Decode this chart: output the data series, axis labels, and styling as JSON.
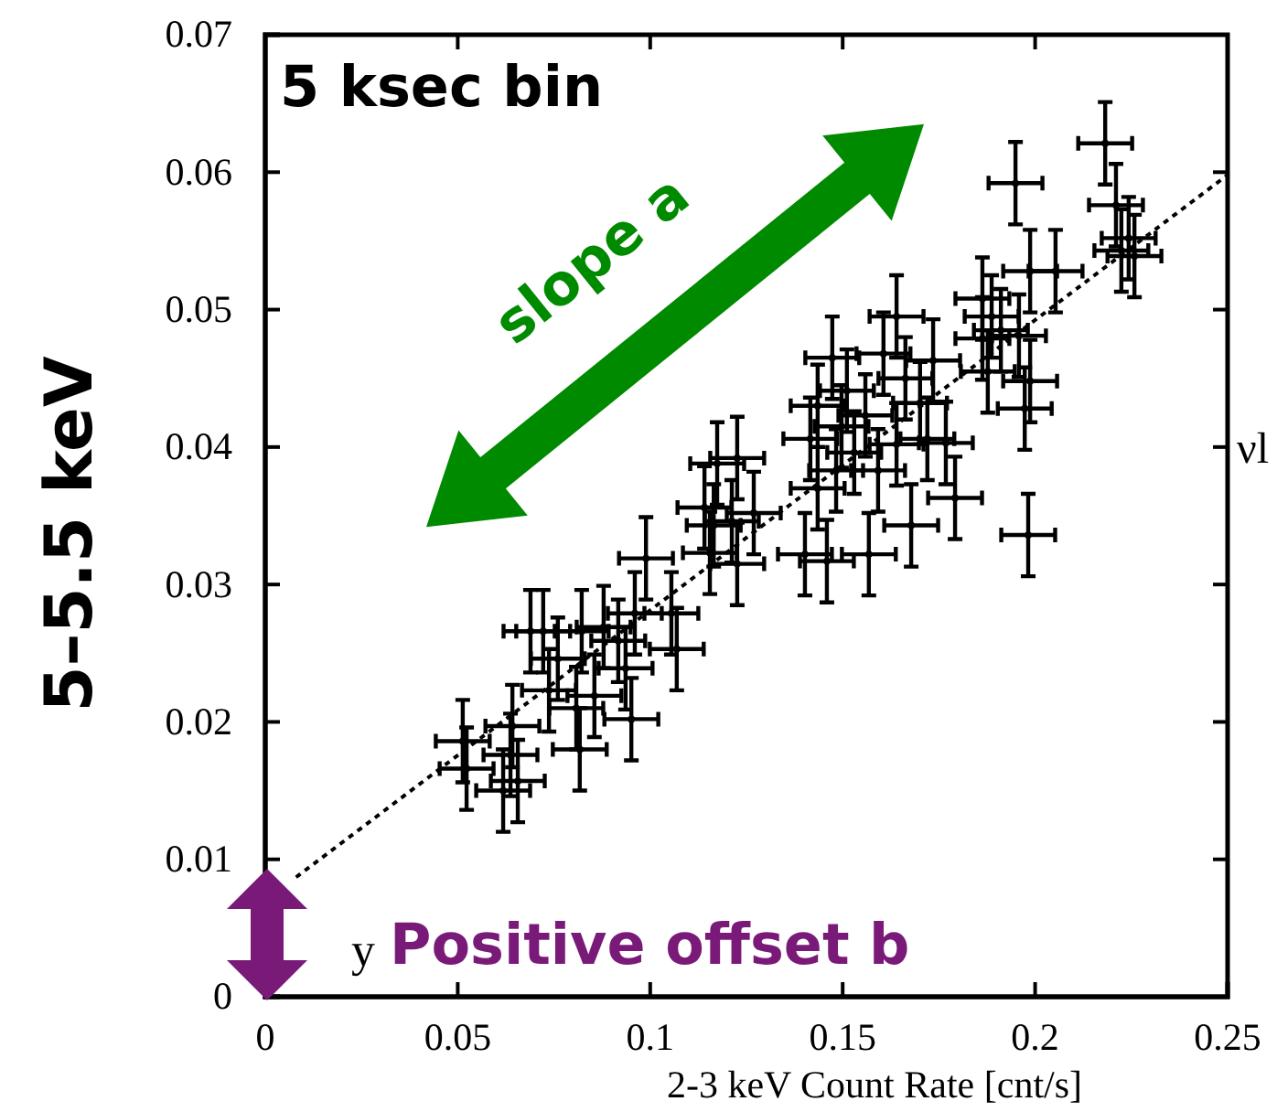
{
  "chart_data": {
    "type": "scatter",
    "xlabel": "2-3 keV Count Rate [cnt/s]",
    "ylabel": "5–5.5 keV",
    "annotations": [
      "5 ksec bin",
      "slope a",
      "Positive offset b",
      "y",
      "νl"
    ],
    "xlim": [
      0,
      0.25
    ],
    "xticks": [
      0,
      0.05,
      0.1,
      0.15,
      0.2,
      0.25
    ],
    "ylim": [
      0,
      0.07
    ],
    "yticks": [
      0,
      0.01,
      0.02,
      0.03,
      0.04,
      0.05,
      0.06,
      0.07
    ],
    "grid": false,
    "series": [
      {
        "marker": "circle",
        "color": "#000000",
        "x": [
          0.0513,
          0.0523,
          0.0642,
          0.0637,
          0.0618,
          0.0656,
          0.0817,
          0.0737,
          0.0808,
          0.0855,
          0.0951,
          0.0689,
          0.0722,
          0.076,
          0.0822,
          0.0879,
          0.0917,
          0.0936,
          0.0989,
          0.1069,
          0.1055,
          0.096,
          0.1155,
          0.1141,
          0.1212,
          0.1226,
          0.1269,
          0.1174,
          0.1226,
          0.1165,
          0.1402,
          0.1459,
          0.1568,
          0.1678,
          0.1792,
          0.1473,
          0.164,
          0.1606,
          0.1435,
          0.1416,
          0.1497,
          0.153,
          0.1559,
          0.1592,
          0.1483,
          0.164,
          0.172,
          0.1768,
          0.1663,
          0.1701,
          0.1511,
          0.1435,
          0.1877,
          0.1911,
          0.1949,
          0.2182,
          0.221,
          0.2243,
          0.2258,
          0.2224,
          0.2053,
          0.1987,
          0.1863,
          0.1887,
          0.1863,
          0.1958,
          0.1735,
          0.1987,
          0.1973,
          0.1982
        ],
        "values": [
          0.0186,
          0.0166,
          0.0197,
          0.0176,
          0.015,
          0.0157,
          0.018,
          0.0223,
          0.021,
          0.0219,
          0.0202,
          0.0266,
          0.0266,
          0.0246,
          0.0266,
          0.0269,
          0.0259,
          0.0239,
          0.0319,
          0.0253,
          0.0279,
          0.0279,
          0.0323,
          0.0356,
          0.0346,
          0.0315,
          0.0352,
          0.0388,
          0.0392,
          0.0343,
          0.0322,
          0.0317,
          0.0322,
          0.0343,
          0.0363,
          0.0465,
          0.0495,
          0.0468,
          0.043,
          0.0406,
          0.0415,
          0.0396,
          0.0423,
          0.0383,
          0.0383,
          0.0402,
          0.0406,
          0.0403,
          0.045,
          0.0432,
          0.0441,
          0.037,
          0.0455,
          0.0485,
          0.0592,
          0.0621,
          0.0576,
          0.0552,
          0.0539,
          0.0543,
          0.0528,
          0.0528,
          0.0508,
          0.0495,
          0.0479,
          0.0481,
          0.0463,
          0.0448,
          0.0428,
          0.0336
        ],
        "errors": [
          0.003,
          0.003,
          0.003,
          0.003,
          0.003,
          0.003,
          0.003,
          0.003,
          0.003,
          0.003,
          0.003,
          0.003,
          0.003,
          0.003,
          0.003,
          0.003,
          0.003,
          0.003,
          0.003,
          0.003,
          0.003,
          0.003,
          0.003,
          0.003,
          0.003,
          0.003,
          0.003,
          0.003,
          0.003,
          0.003,
          0.003,
          0.003,
          0.003,
          0.003,
          0.003,
          0.003,
          0.003,
          0.003,
          0.003,
          0.003,
          0.003,
          0.003,
          0.003,
          0.003,
          0.003,
          0.003,
          0.003,
          0.003,
          0.003,
          0.003,
          0.003,
          0.003,
          0.003,
          0.003,
          0.003,
          0.003,
          0.003,
          0.003,
          0.003,
          0.003,
          0.003,
          0.003,
          0.003,
          0.003,
          0.003,
          0.003,
          0.003,
          0.003,
          0.003,
          0.003
        ],
        "xerrors": [
          0.007,
          0.007,
          0.007,
          0.007,
          0.007,
          0.007,
          0.007,
          0.007,
          0.007,
          0.007,
          0.007,
          0.007,
          0.007,
          0.007,
          0.007,
          0.007,
          0.007,
          0.007,
          0.007,
          0.007,
          0.007,
          0.007,
          0.007,
          0.007,
          0.007,
          0.007,
          0.007,
          0.007,
          0.007,
          0.007,
          0.007,
          0.007,
          0.007,
          0.007,
          0.007,
          0.007,
          0.007,
          0.007,
          0.007,
          0.007,
          0.007,
          0.007,
          0.007,
          0.007,
          0.007,
          0.007,
          0.007,
          0.007,
          0.007,
          0.007,
          0.007,
          0.007,
          0.007,
          0.007,
          0.007,
          0.007,
          0.007,
          0.007,
          0.007,
          0.007,
          0.007,
          0.007,
          0.007,
          0.007,
          0.007,
          0.007,
          0.007,
          0.007,
          0.007,
          0.007
        ]
      },
      {
        "type": "line",
        "color": "#000000",
        "line_style": "dotted",
        "x": [
          0.008,
          0.25
        ],
        "values": [
          0.0087,
          0.0598
        ]
      }
    ]
  }
}
